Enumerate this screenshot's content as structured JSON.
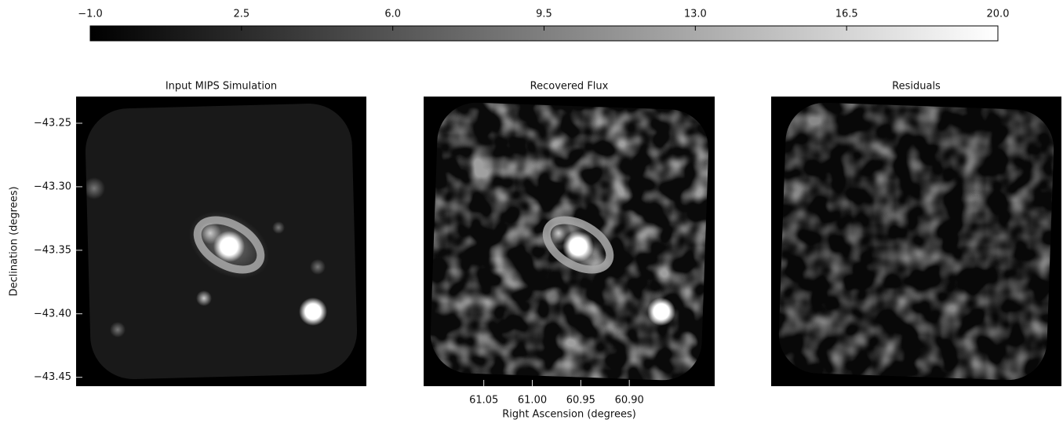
{
  "colorbar": {
    "clim": [
      -1,
      20
    ],
    "ticks": [
      {
        "value": -1,
        "label": "−1.0"
      },
      2.5,
      {
        "value": 6,
        "label": "6.0"
      },
      9.5,
      {
        "value": 13,
        "label": "13.0"
      },
      16.5,
      {
        "value": 20,
        "label": "20.0"
      }
    ]
  },
  "chart_data": [
    {
      "type": "image",
      "title": "Input MIPS Simulation",
      "ylabel": "Declination (degrees)",
      "ylim": [
        -43.457,
        -43.229
      ],
      "yticks": [
        {
          "value": -43.25,
          "label": "−43.25"
        },
        {
          "value": -43.3,
          "label": "−43.30"
        },
        {
          "value": -43.35,
          "label": "−43.35"
        },
        {
          "value": -43.4,
          "label": "−43.40"
        },
        {
          "value": -43.45,
          "label": "−43.45"
        }
      ]
    },
    {
      "type": "image",
      "title": "Recovered Flux",
      "xlabel": "Right Ascension (degrees)",
      "xlim": [
        61.112,
        60.812
      ],
      "xticks": [
        61.05,
        {
          "value": 61,
          "label": "61.00"
        },
        60.95,
        {
          "value": 60.9,
          "label": "60.90"
        }
      ]
    },
    {
      "type": "image",
      "title": "Residuals"
    }
  ]
}
